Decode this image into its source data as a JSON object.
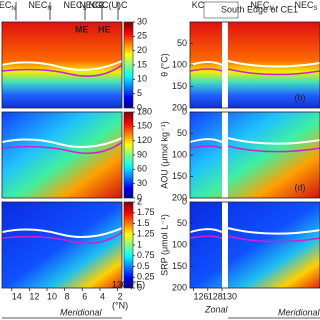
{
  "figure": {
    "top_left": [
      {
        "text": "IEC",
        "sub": "N"
      },
      {
        "text": "NEC",
        "sub": "N"
      },
      {
        "text": "NEC",
        "sub": "S"
      },
      {
        "text": "NECC"
      },
      {
        "text": "NGC(U)C"
      }
    ],
    "top_right": [
      {
        "text": "KC"
      },
      {
        "text": "NEC",
        "sub": "N"
      },
      {
        "text": "NEC",
        "sub": "S"
      }
    ],
    "annotations": [
      "ME",
      "HE",
      "South Edge of CE1"
    ],
    "x_left": {
      "xlim": [
        15.1,
        1.5
      ],
      "xticks": [
        14,
        12,
        10,
        8,
        6,
        4,
        2
      ],
      "unit_top": "130 (°E)",
      "unit_bottom": "(°N)",
      "label": "Meridional"
    },
    "x_right": {
      "xlim": [
        125.5,
        130
      ],
      "xticks": [
        126,
        128,
        130
      ],
      "label_zonal": "Zonal",
      "label_meridional": "Meridional"
    }
  },
  "chart_data": [
    {
      "type": "heatmap",
      "colorbar_label": "θ (°C)",
      "clim": [
        0,
        30
      ],
      "cticks": [
        0,
        5,
        10,
        15,
        20,
        25,
        30
      ],
      "ylim": [
        0,
        200
      ],
      "yticks": [
        50,
        100,
        150,
        200
      ],
      "panel": "(b)"
    },
    {
      "type": "heatmap",
      "colorbar_label": "AOU (μmol kg⁻¹)",
      "clim": [
        0,
        180
      ],
      "cticks": [
        0,
        30,
        60,
        90,
        120,
        150,
        180
      ],
      "ylim": [
        0,
        200
      ],
      "yticks": [
        0,
        50,
        100,
        150,
        200
      ],
      "panel": "(d)"
    },
    {
      "type": "heatmap",
      "colorbar_label": "SRP (μmol L⁻¹)",
      "clim": [
        0,
        2
      ],
      "cticks": [
        0,
        0.25,
        0.5,
        0.75,
        1,
        1.25,
        1.5,
        1.75,
        2
      ],
      "ylim": [
        0,
        200
      ],
      "yticks": [
        0,
        50,
        100,
        150,
        200
      ]
    }
  ]
}
